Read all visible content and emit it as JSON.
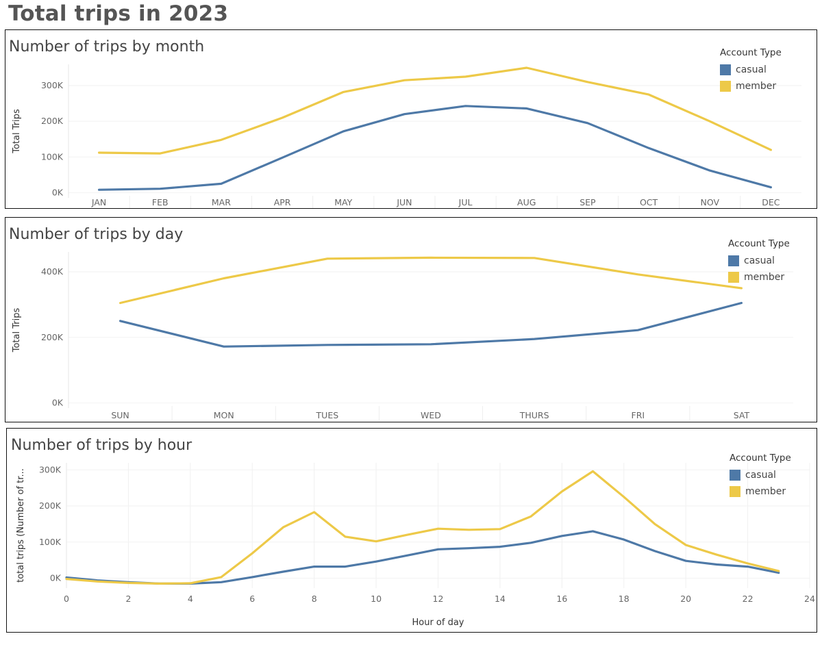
{
  "dashboard": {
    "title": "Total trips in 2023"
  },
  "colors": {
    "casual": "#4e79a7",
    "member": "#edc948"
  },
  "chart_data": [
    {
      "id": "month",
      "type": "line",
      "title": "Number of trips by month",
      "ylabel": "Total Trips",
      "xlabel": "",
      "categories": [
        "JAN",
        "FEB",
        "MAR",
        "APR",
        "MAY",
        "JUN",
        "JUL",
        "AUG",
        "SEP",
        "OCT",
        "NOV",
        "DEC"
      ],
      "yticks": [
        0,
        100000,
        200000,
        300000
      ],
      "ytick_labels": [
        "0K",
        "100K",
        "200K",
        "300K"
      ],
      "ylim": [
        -5000,
        350000
      ],
      "legend": {
        "title": "Account Type",
        "position": "top-right"
      },
      "series": [
        {
          "name": "casual",
          "values": [
            8000,
            11000,
            25000,
            98000,
            172000,
            220000,
            243000,
            236000,
            195000,
            125000,
            62000,
            15000
          ]
        },
        {
          "name": "member",
          "values": [
            112000,
            110000,
            148000,
            210000,
            282000,
            315000,
            325000,
            350000,
            310000,
            275000,
            200000,
            120000
          ]
        }
      ]
    },
    {
      "id": "day",
      "type": "line",
      "title": "Number of trips by day",
      "ylabel": "Total Trips",
      "xlabel": "",
      "categories": [
        "SUN",
        "MON",
        "TUES",
        "WED",
        "THURS",
        "FRI",
        "SAT"
      ],
      "yticks": [
        0,
        200000,
        400000
      ],
      "ytick_labels": [
        "0K",
        "200K",
        "400K"
      ],
      "ylim": [
        -5000,
        450000
      ],
      "legend": {
        "title": "Account Type",
        "position": "top-right"
      },
      "series": [
        {
          "name": "casual",
          "values": [
            250000,
            172000,
            177000,
            179000,
            195000,
            222000,
            305000
          ]
        },
        {
          "name": "member",
          "values": [
            305000,
            380000,
            440000,
            443000,
            442000,
            392000,
            350000
          ]
        }
      ]
    },
    {
      "id": "hour",
      "type": "line",
      "title": "Number of trips by hour",
      "ylabel": "total trips (Number of tr...",
      "xlabel": "Hour of day",
      "x": [
        0,
        1,
        2,
        3,
        4,
        5,
        6,
        7,
        8,
        9,
        10,
        11,
        12,
        13,
        14,
        15,
        16,
        17,
        18,
        19,
        20,
        21,
        22,
        23
      ],
      "xticks": [
        0,
        2,
        4,
        6,
        8,
        10,
        12,
        14,
        16,
        18,
        20,
        22,
        24
      ],
      "xlim": [
        0,
        24
      ],
      "yticks": [
        0,
        100000,
        200000,
        300000
      ],
      "ytick_labels": [
        "0K",
        "100K",
        "200K",
        "300K"
      ],
      "ylim": [
        -18000,
        310000
      ],
      "legend": {
        "title": "Account Type",
        "position": "top-right"
      },
      "series": [
        {
          "name": "casual",
          "values": [
            2000,
            -6000,
            -11000,
            -15000,
            -15000,
            -11000,
            3000,
            18000,
            32000,
            32000,
            46000,
            63000,
            80000,
            83000,
            87000,
            98000,
            117000,
            130000,
            107000,
            75000,
            48000,
            38000,
            32000,
            15000
          ]
        },
        {
          "name": "member",
          "values": [
            -2000,
            -9000,
            -13000,
            -15000,
            -14000,
            3000,
            69000,
            141000,
            183000,
            115000,
            102000,
            120000,
            137000,
            134000,
            136000,
            171000,
            240000,
            296000,
            225000,
            150000,
            92000,
            65000,
            41000,
            20000
          ]
        }
      ]
    }
  ]
}
